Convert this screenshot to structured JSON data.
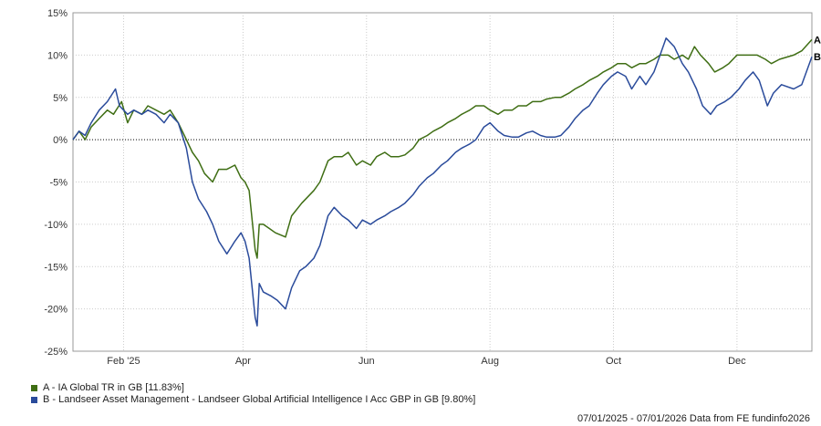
{
  "chart_data": {
    "type": "line",
    "ylim": [
      -25,
      15
    ],
    "yticks": [
      15,
      10,
      5,
      0,
      -5,
      -10,
      -15,
      -20,
      -25
    ],
    "ytick_labels": [
      "15%",
      "10%",
      "5%",
      "0%",
      "-5%",
      "-10%",
      "-15%",
      "-20%",
      "-25%"
    ],
    "xlim": [
      "2025-01-07",
      "2026-01-07"
    ],
    "xticks": [
      {
        "label": "Feb '25",
        "date": "2025-02-01"
      },
      {
        "label": "Apr",
        "date": "2025-04-01"
      },
      {
        "label": "Jun",
        "date": "2025-06-01"
      },
      {
        "label": "Aug",
        "date": "2025-08-01"
      },
      {
        "label": "Oct",
        "date": "2025-10-01"
      },
      {
        "label": "Dec",
        "date": "2025-12-01"
      }
    ],
    "grid": true,
    "zero_line": "dotted",
    "series": [
      {
        "name": "A - IA Global TR in GB [11.83%]",
        "end_label": "A",
        "color": "#3f6e14",
        "points": [
          [
            "2025-01-07",
            0
          ],
          [
            "2025-01-10",
            1
          ],
          [
            "2025-01-13",
            0
          ],
          [
            "2025-01-16",
            1.5
          ],
          [
            "2025-01-20",
            2.5
          ],
          [
            "2025-01-24",
            3.5
          ],
          [
            "2025-01-27",
            3
          ],
          [
            "2025-01-31",
            4.5
          ],
          [
            "2025-02-03",
            2
          ],
          [
            "2025-02-06",
            3.5
          ],
          [
            "2025-02-10",
            3
          ],
          [
            "2025-02-13",
            4
          ],
          [
            "2025-02-17",
            3.5
          ],
          [
            "2025-02-21",
            3
          ],
          [
            "2025-02-24",
            3.5
          ],
          [
            "2025-02-28",
            2
          ],
          [
            "2025-03-04",
            0
          ],
          [
            "2025-03-07",
            -1.5
          ],
          [
            "2025-03-10",
            -2.5
          ],
          [
            "2025-03-13",
            -4
          ],
          [
            "2025-03-17",
            -5
          ],
          [
            "2025-03-20",
            -3.5
          ],
          [
            "2025-03-24",
            -3.5
          ],
          [
            "2025-03-28",
            -3
          ],
          [
            "2025-03-31",
            -4.5
          ],
          [
            "2025-04-02",
            -5
          ],
          [
            "2025-04-04",
            -6
          ],
          [
            "2025-04-07",
            -13
          ],
          [
            "2025-04-08",
            -14
          ],
          [
            "2025-04-09",
            -10
          ],
          [
            "2025-04-11",
            -10
          ],
          [
            "2025-04-14",
            -10.5
          ],
          [
            "2025-04-17",
            -11
          ],
          [
            "2025-04-22",
            -11.5
          ],
          [
            "2025-04-25",
            -9
          ],
          [
            "2025-04-30",
            -7.5
          ],
          [
            "2025-05-06",
            -6
          ],
          [
            "2025-05-09",
            -5
          ],
          [
            "2025-05-13",
            -2.5
          ],
          [
            "2025-05-16",
            -2
          ],
          [
            "2025-05-20",
            -2
          ],
          [
            "2025-05-23",
            -1.5
          ],
          [
            "2025-05-27",
            -3
          ],
          [
            "2025-05-30",
            -2.5
          ],
          [
            "2025-06-03",
            -3
          ],
          [
            "2025-06-06",
            -2
          ],
          [
            "2025-06-10",
            -1.5
          ],
          [
            "2025-06-13",
            -2
          ],
          [
            "2025-06-17",
            -2
          ],
          [
            "2025-06-20",
            -1.8
          ],
          [
            "2025-06-24",
            -1
          ],
          [
            "2025-06-27",
            0
          ],
          [
            "2025-07-01",
            0.5
          ],
          [
            "2025-07-04",
            1
          ],
          [
            "2025-07-08",
            1.5
          ],
          [
            "2025-07-11",
            2
          ],
          [
            "2025-07-15",
            2.5
          ],
          [
            "2025-07-18",
            3
          ],
          [
            "2025-07-22",
            3.5
          ],
          [
            "2025-07-25",
            4
          ],
          [
            "2025-07-29",
            4
          ],
          [
            "2025-08-01",
            3.5
          ],
          [
            "2025-08-05",
            3
          ],
          [
            "2025-08-08",
            3.5
          ],
          [
            "2025-08-12",
            3.5
          ],
          [
            "2025-08-15",
            4
          ],
          [
            "2025-08-19",
            4
          ],
          [
            "2025-08-22",
            4.5
          ],
          [
            "2025-08-26",
            4.5
          ],
          [
            "2025-08-29",
            4.8
          ],
          [
            "2025-09-02",
            5
          ],
          [
            "2025-09-05",
            5
          ],
          [
            "2025-09-09",
            5.5
          ],
          [
            "2025-09-12",
            6
          ],
          [
            "2025-09-16",
            6.5
          ],
          [
            "2025-09-19",
            7
          ],
          [
            "2025-09-23",
            7.5
          ],
          [
            "2025-09-26",
            8
          ],
          [
            "2025-09-30",
            8.5
          ],
          [
            "2025-10-03",
            9
          ],
          [
            "2025-10-07",
            9
          ],
          [
            "2025-10-10",
            8.5
          ],
          [
            "2025-10-14",
            9
          ],
          [
            "2025-10-17",
            9
          ],
          [
            "2025-10-21",
            9.5
          ],
          [
            "2025-10-24",
            10
          ],
          [
            "2025-10-28",
            10
          ],
          [
            "2025-10-31",
            9.5
          ],
          [
            "2025-11-04",
            10
          ],
          [
            "2025-11-07",
            9.5
          ],
          [
            "2025-11-10",
            11
          ],
          [
            "2025-11-13",
            10
          ],
          [
            "2025-11-17",
            9
          ],
          [
            "2025-11-20",
            8
          ],
          [
            "2025-11-24",
            8.5
          ],
          [
            "2025-11-27",
            9
          ],
          [
            "2025-12-01",
            10
          ],
          [
            "2025-12-04",
            10
          ],
          [
            "2025-12-08",
            10
          ],
          [
            "2025-12-11",
            10
          ],
          [
            "2025-12-15",
            9.5
          ],
          [
            "2025-12-18",
            9
          ],
          [
            "2025-12-22",
            9.5
          ],
          [
            "2025-12-29",
            10
          ],
          [
            "2026-01-02",
            10.5
          ],
          [
            "2026-01-07",
            11.83
          ]
        ]
      },
      {
        "name": "B - Landseer Asset Management - Landseer Global Artificial Intelligence I Acc GBP in GB [9.80%]",
        "end_label": "B",
        "color": "#2a4b9b",
        "points": [
          [
            "2025-01-07",
            0
          ],
          [
            "2025-01-10",
            1
          ],
          [
            "2025-01-13",
            0.5
          ],
          [
            "2025-01-16",
            2
          ],
          [
            "2025-01-20",
            3.5
          ],
          [
            "2025-01-24",
            4.5
          ],
          [
            "2025-01-28",
            6
          ],
          [
            "2025-01-30",
            4
          ],
          [
            "2025-02-03",
            3
          ],
          [
            "2025-02-06",
            3.5
          ],
          [
            "2025-02-10",
            3
          ],
          [
            "2025-02-13",
            3.5
          ],
          [
            "2025-02-17",
            3
          ],
          [
            "2025-02-21",
            2
          ],
          [
            "2025-02-24",
            3
          ],
          [
            "2025-02-28",
            2
          ],
          [
            "2025-03-04",
            -1
          ],
          [
            "2025-03-07",
            -5
          ],
          [
            "2025-03-10",
            -7
          ],
          [
            "2025-03-14",
            -8.5
          ],
          [
            "2025-03-17",
            -10
          ],
          [
            "2025-03-20",
            -12
          ],
          [
            "2025-03-24",
            -13.5
          ],
          [
            "2025-03-28",
            -12
          ],
          [
            "2025-03-31",
            -11
          ],
          [
            "2025-04-02",
            -12
          ],
          [
            "2025-04-04",
            -14
          ],
          [
            "2025-04-07",
            -21
          ],
          [
            "2025-04-08",
            -22
          ],
          [
            "2025-04-09",
            -17
          ],
          [
            "2025-04-11",
            -18
          ],
          [
            "2025-04-15",
            -18.5
          ],
          [
            "2025-04-18",
            -19
          ],
          [
            "2025-04-22",
            -20
          ],
          [
            "2025-04-25",
            -17.5
          ],
          [
            "2025-04-29",
            -15.5
          ],
          [
            "2025-05-02",
            -15
          ],
          [
            "2025-05-06",
            -14
          ],
          [
            "2025-05-09",
            -12.5
          ],
          [
            "2025-05-13",
            -9
          ],
          [
            "2025-05-16",
            -8
          ],
          [
            "2025-05-20",
            -9
          ],
          [
            "2025-05-23",
            -9.5
          ],
          [
            "2025-05-27",
            -10.5
          ],
          [
            "2025-05-30",
            -9.5
          ],
          [
            "2025-06-03",
            -10
          ],
          [
            "2025-06-06",
            -9.5
          ],
          [
            "2025-06-10",
            -9
          ],
          [
            "2025-06-13",
            -8.5
          ],
          [
            "2025-06-17",
            -8
          ],
          [
            "2025-06-20",
            -7.5
          ],
          [
            "2025-06-24",
            -6.5
          ],
          [
            "2025-06-27",
            -5.5
          ],
          [
            "2025-07-01",
            -4.5
          ],
          [
            "2025-07-04",
            -4
          ],
          [
            "2025-07-08",
            -3
          ],
          [
            "2025-07-11",
            -2.5
          ],
          [
            "2025-07-15",
            -1.5
          ],
          [
            "2025-07-18",
            -1
          ],
          [
            "2025-07-22",
            -0.5
          ],
          [
            "2025-07-25",
            0
          ],
          [
            "2025-07-29",
            1.5
          ],
          [
            "2025-08-01",
            2
          ],
          [
            "2025-08-05",
            1
          ],
          [
            "2025-08-08",
            0.5
          ],
          [
            "2025-08-12",
            0.3
          ],
          [
            "2025-08-15",
            0.3
          ],
          [
            "2025-08-19",
            0.8
          ],
          [
            "2025-08-22",
            1
          ],
          [
            "2025-08-26",
            0.5
          ],
          [
            "2025-08-29",
            0.3
          ],
          [
            "2025-09-02",
            0.3
          ],
          [
            "2025-09-05",
            0.5
          ],
          [
            "2025-09-09",
            1.5
          ],
          [
            "2025-09-12",
            2.5
          ],
          [
            "2025-09-16",
            3.5
          ],
          [
            "2025-09-19",
            4
          ],
          [
            "2025-09-23",
            5.5
          ],
          [
            "2025-09-26",
            6.5
          ],
          [
            "2025-09-30",
            7.5
          ],
          [
            "2025-10-03",
            8
          ],
          [
            "2025-10-07",
            7.5
          ],
          [
            "2025-10-10",
            6
          ],
          [
            "2025-10-14",
            7.5
          ],
          [
            "2025-10-17",
            6.5
          ],
          [
            "2025-10-21",
            8
          ],
          [
            "2025-10-24",
            10
          ],
          [
            "2025-10-27",
            12
          ],
          [
            "2025-10-31",
            11
          ],
          [
            "2025-11-04",
            9
          ],
          [
            "2025-11-07",
            8
          ],
          [
            "2025-11-11",
            6
          ],
          [
            "2025-11-14",
            4
          ],
          [
            "2025-11-18",
            3
          ],
          [
            "2025-11-21",
            4
          ],
          [
            "2025-11-25",
            4.5
          ],
          [
            "2025-11-28",
            5
          ],
          [
            "2025-12-02",
            6
          ],
          [
            "2025-12-05",
            7
          ],
          [
            "2025-12-09",
            8
          ],
          [
            "2025-12-12",
            7
          ],
          [
            "2025-12-16",
            4
          ],
          [
            "2025-12-19",
            5.5
          ],
          [
            "2025-12-23",
            6.5
          ],
          [
            "2025-12-29",
            6
          ],
          [
            "2026-01-02",
            6.5
          ],
          [
            "2026-01-07",
            9.8
          ]
        ]
      }
    ]
  },
  "legend": {
    "a_label": "A - IA Global TR in GB [11.83%]",
    "b_label": "B - Landseer Asset Management - Landseer Global Artificial Intelligence I Acc GBP in GB [9.80%]"
  },
  "footer": {
    "text": "07/01/2025 - 07/01/2026 Data from FE fundinfo2026"
  },
  "colors": {
    "series_a": "#3f6e14",
    "series_b": "#2a4b9b",
    "grid": "#cccccc",
    "axis": "#999999"
  }
}
